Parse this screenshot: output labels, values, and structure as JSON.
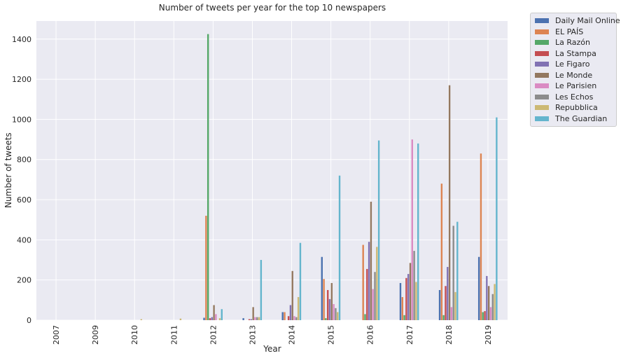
{
  "chart_data": {
    "type": "bar",
    "title": "Number of tweets per year for the top 10 newspapers",
    "xlabel": "Year",
    "ylabel": "Number of tweets",
    "ylim": [
      0,
      1490
    ],
    "yticks": [
      0,
      200,
      400,
      600,
      800,
      1000,
      1200,
      1400
    ],
    "grid": true,
    "legend_position": "outside-right",
    "categories": [
      "2007",
      "2009",
      "2010",
      "2011",
      "2012",
      "2013",
      "2014",
      "2015",
      "2016",
      "2017",
      "2018",
      "2019"
    ],
    "series": [
      {
        "name": "Daily Mail Online",
        "color": "#4c72b0",
        "values": [
          0,
          0,
          0,
          0,
          12,
          10,
          40,
          315,
          0,
          185,
          150,
          315
        ]
      },
      {
        "name": "EL PAÍS",
        "color": "#dd8452",
        "values": [
          0,
          0,
          0,
          0,
          520,
          0,
          40,
          205,
          375,
          115,
          680,
          830
        ]
      },
      {
        "name": "La Razón",
        "color": "#55a868",
        "values": [
          0,
          0,
          0,
          0,
          1425,
          0,
          0,
          10,
          30,
          25,
          25,
          40
        ]
      },
      {
        "name": "La Stampa",
        "color": "#c44e52",
        "values": [
          0,
          0,
          0,
          0,
          10,
          5,
          20,
          150,
          255,
          210,
          170,
          45
        ]
      },
      {
        "name": "Le Figaro",
        "color": "#8172b3",
        "values": [
          0,
          0,
          0,
          0,
          15,
          5,
          75,
          105,
          390,
          230,
          265,
          220
        ]
      },
      {
        "name": "Le Monde",
        "color": "#937860",
        "values": [
          0,
          0,
          0,
          0,
          75,
          65,
          245,
          185,
          590,
          285,
          1170,
          170
        ]
      },
      {
        "name": "Le Parisien",
        "color": "#da8bc3",
        "values": [
          0,
          0,
          0,
          0,
          30,
          15,
          20,
          80,
          155,
          900,
          65,
          65
        ]
      },
      {
        "name": "Les Echos",
        "color": "#8c8c8c",
        "values": [
          0,
          0,
          0,
          0,
          0,
          15,
          15,
          60,
          240,
          345,
          470,
          130
        ]
      },
      {
        "name": "Repubblica",
        "color": "#ccb974",
        "values": [
          0,
          0,
          5,
          8,
          10,
          15,
          115,
          40,
          365,
          190,
          140,
          180
        ]
      },
      {
        "name": "The Guardian",
        "color": "#64b5cd",
        "values": [
          0,
          0,
          0,
          0,
          55,
          300,
          385,
          720,
          895,
          880,
          490,
          1010
        ]
      }
    ]
  }
}
